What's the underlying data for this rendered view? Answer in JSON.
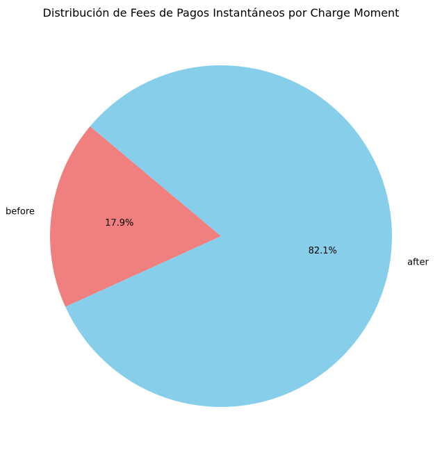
{
  "chart_data": {
    "type": "pie",
    "title": "Distribución de Fees de Pagos Instantáneos por Charge Moment",
    "slices": [
      {
        "label": "before",
        "value": 17.9,
        "pct_label": "17.9%",
        "color": "#F08080"
      },
      {
        "label": "after",
        "value": 82.1,
        "pct_label": "82.1%",
        "color": "#87CEEB"
      }
    ],
    "start_angle_deg": 140,
    "direction": "counterclockwise"
  }
}
